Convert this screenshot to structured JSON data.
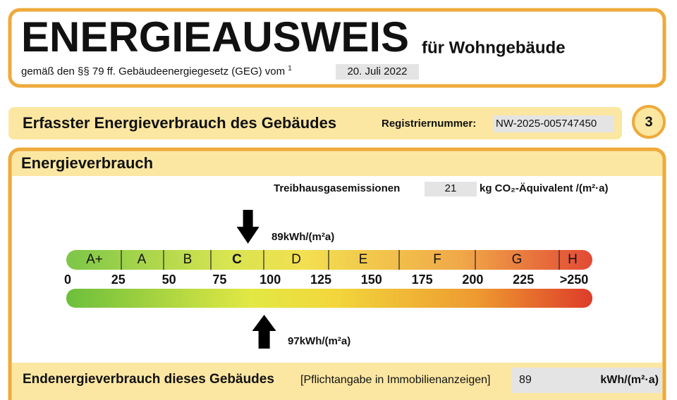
{
  "header": {
    "title": "ENERGIEAUSWEIS",
    "subtitle": "für Wohngebäude",
    "legal": "gemäß den §§ 79 ff. Gebäudeenergiegesetz (GEG) vom",
    "footnote": "1",
    "date": "20. Juli 2022"
  },
  "section": {
    "title": "Erfasster Energieverbrauch des Gebäudes",
    "registration_label": "Registriernummer:",
    "registration_number": "NW-2025-005747450",
    "page": "3"
  },
  "consumption": {
    "title": "Energieverbrauch",
    "emissions": {
      "label": "Treibhausgasemissionen",
      "value": 21,
      "unit": "kg CO₂-Äquivalent /(m²·a)"
    },
    "scale": {
      "classes": [
        "A+",
        "A",
        "B",
        "C",
        "D",
        "E",
        "F",
        "G",
        "H"
      ],
      "ticks": [
        0,
        25,
        50,
        75,
        100,
        125,
        150,
        175,
        200,
        225,
        {
          "value": 250,
          "label": ">250"
        }
      ],
      "range": [
        0,
        250
      ]
    },
    "end_energy_marker": {
      "value": 89,
      "unit": "kWh/(m²a)"
    },
    "primary_energy_marker": {
      "value": 97,
      "unit": "kWh/(m²a)"
    },
    "final_row": {
      "label": "Endenergieverbrauch dieses Gebäudes",
      "note": "[Pflichtangabe in Immobilienanzeigen]",
      "value": 89,
      "unit": "kWh/(m²·a)"
    }
  }
}
